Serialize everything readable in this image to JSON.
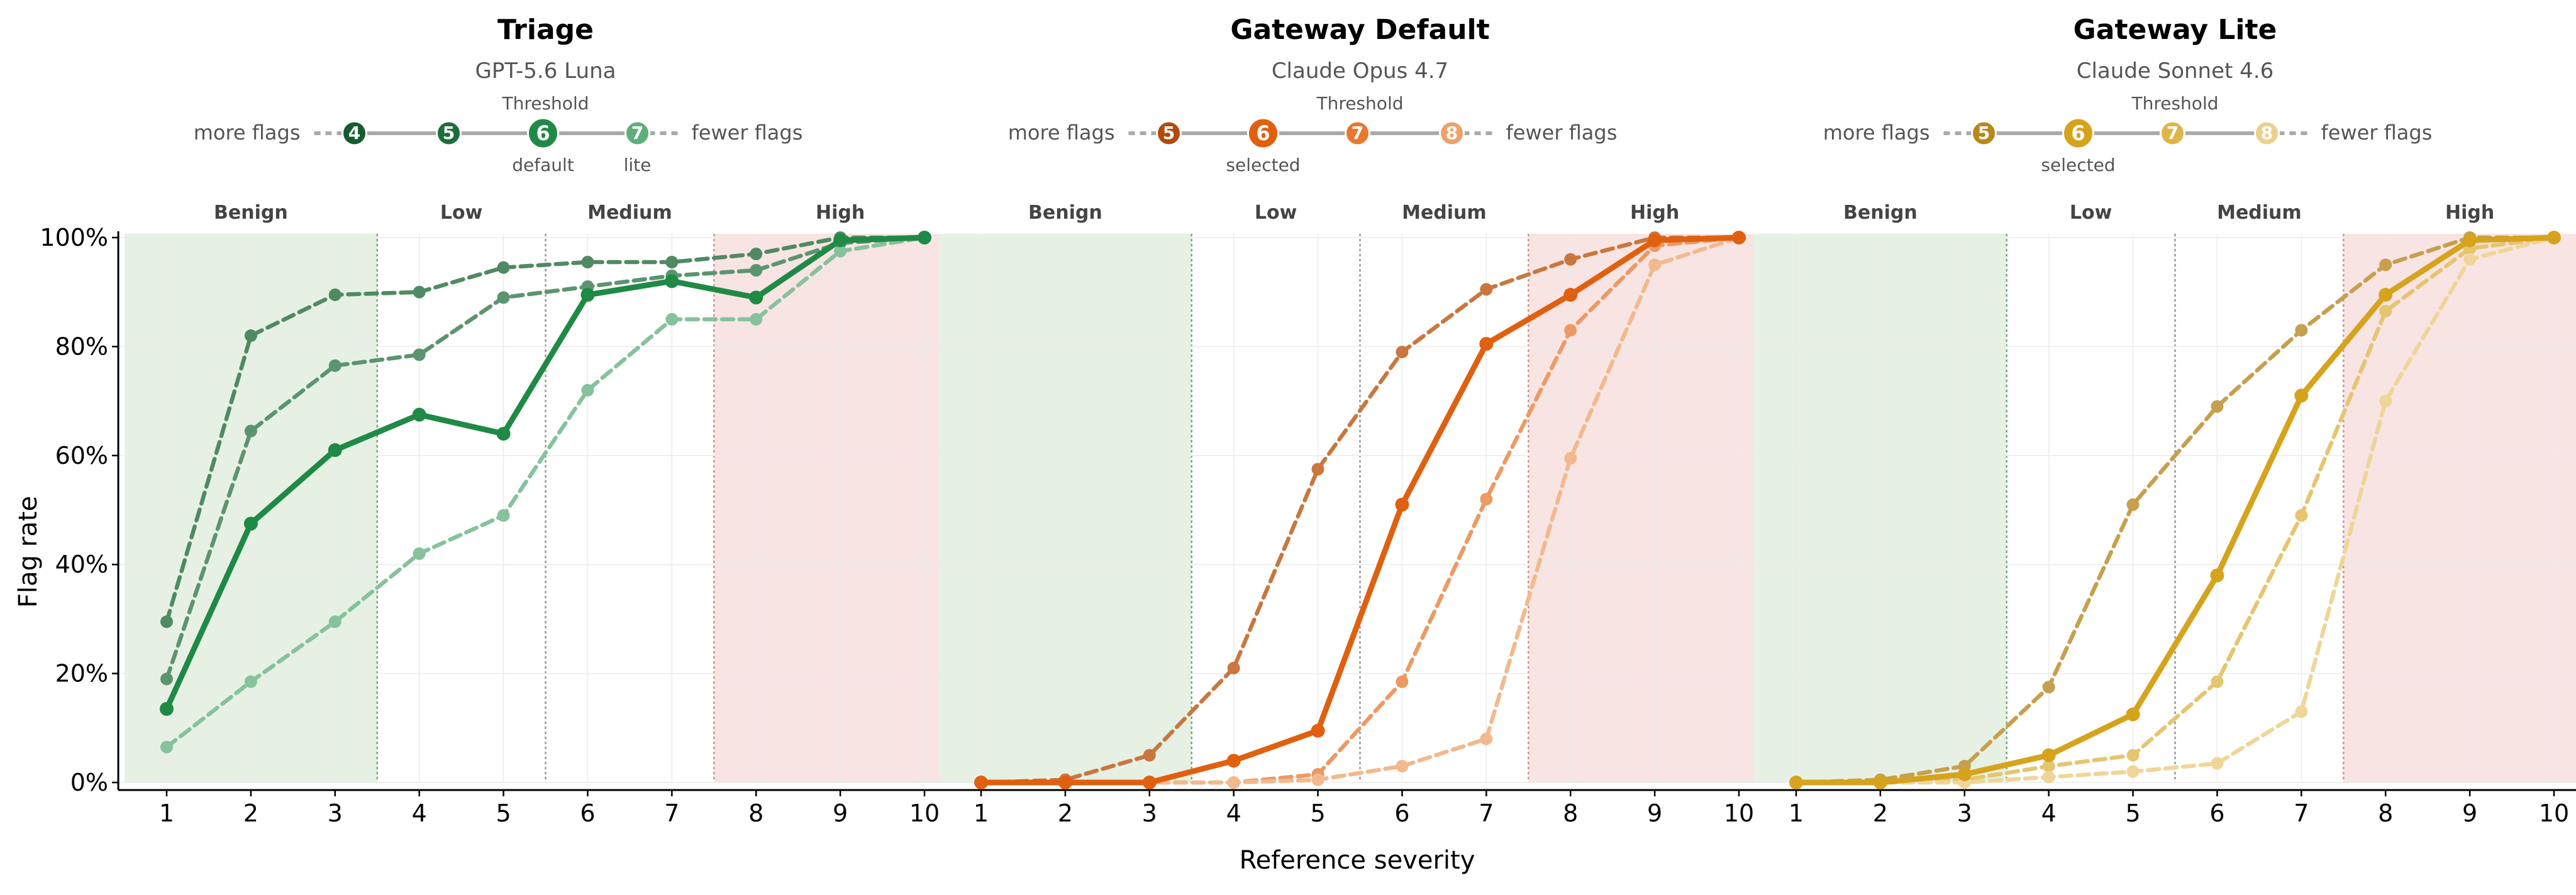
{
  "figure": {
    "ylabel": "Flag rate",
    "xlabel": "Reference severity"
  },
  "chart_data": [
    {
      "type": "line",
      "title": "Triage",
      "subtitle": "GPT-5.6 Luna",
      "color": "#1f8a45",
      "threshold": {
        "title": "Threshold",
        "left_label": "more flags",
        "right_label": "fewer flags",
        "levels": [
          {
            "value": "4",
            "color": "#155c30",
            "note": ""
          },
          {
            "value": "5",
            "color": "#1d6e3a",
            "note": ""
          },
          {
            "value": "6",
            "color": "#1f8a45",
            "note": "default",
            "selected": true
          },
          {
            "value": "7",
            "color": "#5fae7c",
            "note": "lite"
          }
        ]
      },
      "bands": [
        {
          "label": "Benign",
          "from": 0.5,
          "to": 3.5,
          "color": "#e6f1e4"
        },
        {
          "label": "Low",
          "from": 3.5,
          "to": 5.5,
          "color": "none"
        },
        {
          "label": "Medium",
          "from": 5.5,
          "to": 7.5,
          "color": "none"
        },
        {
          "label": "High",
          "from": 7.5,
          "to": 10.5,
          "color": "#f8e4e3"
        }
      ],
      "x": [
        1,
        2,
        3,
        4,
        5,
        6,
        7,
        8,
        9,
        10
      ],
      "xticks": [
        "1",
        "2",
        "3",
        "4",
        "5",
        "6",
        "7",
        "8",
        "9",
        "10"
      ],
      "ylim": [
        0,
        100
      ],
      "yticks": [
        "0%",
        "20%",
        "40%",
        "60%",
        "80%",
        "100%"
      ],
      "series": [
        {
          "threshold": "4",
          "style": "dashed",
          "color": "#4f8a62",
          "values": [
            29.5,
            82,
            89.5,
            90,
            94.5,
            95.5,
            95.5,
            97,
            100,
            100
          ]
        },
        {
          "threshold": "5",
          "style": "dashed",
          "color": "#5c9470",
          "values": [
            19,
            64.5,
            76.5,
            78.5,
            89,
            91,
            93,
            94,
            99,
            100
          ]
        },
        {
          "threshold": "7",
          "style": "dashed",
          "color": "#86c29b",
          "values": [
            6.5,
            18.5,
            29.5,
            42,
            49,
            72,
            85,
            85,
            97.5,
            100
          ]
        },
        {
          "threshold": "6",
          "style": "solid",
          "color": "#1f8a45",
          "values": [
            13.5,
            47.5,
            61,
            67.5,
            64,
            89.5,
            92,
            89,
            99.5,
            100
          ]
        }
      ]
    },
    {
      "type": "line",
      "title": "Gateway Default",
      "subtitle": "Claude Opus 4.7",
      "color": "#e0600f",
      "threshold": {
        "title": "Threshold",
        "left_label": "more flags",
        "right_label": "fewer flags",
        "levels": [
          {
            "value": "5",
            "color": "#b24a0c",
            "note": ""
          },
          {
            "value": "6",
            "color": "#e0600f",
            "note": "selected",
            "selected": true
          },
          {
            "value": "7",
            "color": "#e8782e",
            "note": ""
          },
          {
            "value": "8",
            "color": "#f0a06a",
            "note": ""
          }
        ]
      },
      "bands": [
        {
          "label": "Benign",
          "from": 0.5,
          "to": 3.5,
          "color": "#e6f1e4"
        },
        {
          "label": "Low",
          "from": 3.5,
          "to": 5.5,
          "color": "none"
        },
        {
          "label": "Medium",
          "from": 5.5,
          "to": 7.5,
          "color": "none"
        },
        {
          "label": "High",
          "from": 7.5,
          "to": 10.5,
          "color": "#f8e4e3"
        }
      ],
      "x": [
        1,
        2,
        3,
        4,
        5,
        6,
        7,
        8,
        9,
        10
      ],
      "xticks": [
        "1",
        "2",
        "3",
        "4",
        "5",
        "6",
        "7",
        "8",
        "9",
        "10"
      ],
      "ylim": [
        0,
        100
      ],
      "yticks": [
        "0%",
        "20%",
        "40%",
        "60%",
        "80%",
        "100%"
      ],
      "series": [
        {
          "threshold": "5",
          "style": "dashed",
          "color": "#c9773e",
          "values": [
            0,
            0.5,
            5,
            21,
            57.5,
            79,
            90.5,
            96,
            100,
            100
          ]
        },
        {
          "threshold": "7",
          "style": "dashed",
          "color": "#ec9a63",
          "values": [
            0,
            0,
            0,
            0,
            1.5,
            18.5,
            52,
            83,
            98.5,
            100
          ]
        },
        {
          "threshold": "8",
          "style": "dashed",
          "color": "#f2b98e",
          "values": [
            0,
            0,
            0,
            0,
            0.5,
            3,
            8,
            59.5,
            95,
            100
          ]
        },
        {
          "threshold": "6",
          "style": "solid",
          "color": "#e0600f",
          "values": [
            0,
            0,
            0,
            4,
            9.5,
            51,
            80.5,
            89.5,
            99.5,
            100
          ]
        }
      ]
    },
    {
      "type": "line",
      "title": "Gateway Lite",
      "subtitle": "Claude Sonnet 4.6",
      "color": "#d6a31c",
      "threshold": {
        "title": "Threshold",
        "left_label": "more flags",
        "right_label": "fewer flags",
        "levels": [
          {
            "value": "5",
            "color": "#b7891a",
            "note": ""
          },
          {
            "value": "6",
            "color": "#d6a31c",
            "note": "selected",
            "selected": true
          },
          {
            "value": "7",
            "color": "#dfb547",
            "note": ""
          },
          {
            "value": "8",
            "color": "#ead08a",
            "note": ""
          }
        ]
      },
      "bands": [
        {
          "label": "Benign",
          "from": 0.5,
          "to": 3.5,
          "color": "#e6f1e4"
        },
        {
          "label": "Low",
          "from": 3.5,
          "to": 5.5,
          "color": "none"
        },
        {
          "label": "Medium",
          "from": 5.5,
          "to": 7.5,
          "color": "none"
        },
        {
          "label": "High",
          "from": 7.5,
          "to": 10.5,
          "color": "#f8e4e3"
        }
      ],
      "x": [
        1,
        2,
        3,
        4,
        5,
        6,
        7,
        8,
        9,
        10
      ],
      "xticks": [
        "1",
        "2",
        "3",
        "4",
        "5",
        "6",
        "7",
        "8",
        "9",
        "10"
      ],
      "ylim": [
        0,
        100
      ],
      "yticks": [
        "0%",
        "20%",
        "40%",
        "60%",
        "80%",
        "100%"
      ],
      "series": [
        {
          "threshold": "5",
          "style": "dashed",
          "color": "#c6a04e",
          "values": [
            0,
            0.5,
            3,
            17.5,
            51,
            69,
            83,
            95,
            100,
            100
          ]
        },
        {
          "threshold": "7",
          "style": "dashed",
          "color": "#e5c570",
          "values": [
            0,
            0,
            0.5,
            3,
            5,
            18.5,
            49,
            86.5,
            98,
            100
          ]
        },
        {
          "threshold": "8",
          "style": "dashed",
          "color": "#efd698",
          "values": [
            0,
            0,
            0,
            1,
            2,
            3.5,
            13,
            70,
            96,
            100
          ]
        },
        {
          "threshold": "6",
          "style": "solid",
          "color": "#d6a31c",
          "values": [
            0,
            0,
            1.5,
            5,
            12.5,
            38,
            71,
            89.5,
            99.5,
            100
          ]
        }
      ]
    }
  ]
}
